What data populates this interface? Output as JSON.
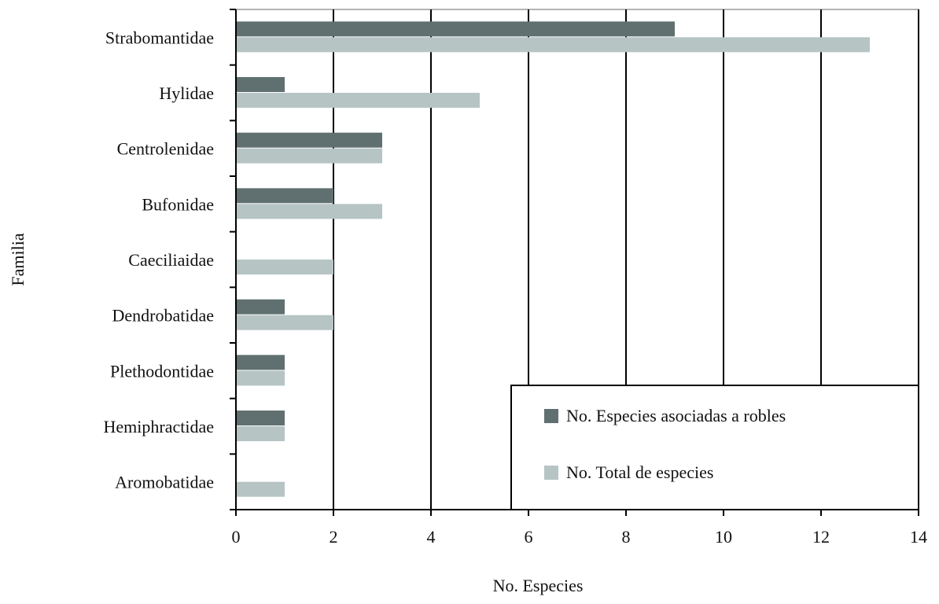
{
  "chart_data": {
    "type": "bar",
    "orientation": "horizontal",
    "categories": [
      "Strabomantidae",
      "Hylidae",
      "Centrolenidae",
      "Bufonidae",
      "Caeciliaidae",
      "Dendrobatidae",
      "Plethodontidae",
      "Hemiphractidae",
      "Aromobatidae"
    ],
    "series": [
      {
        "name": "No. Especies asociadas a robles",
        "color": "#607070",
        "values": [
          9,
          1,
          3,
          2,
          0,
          1,
          1,
          1,
          0
        ]
      },
      {
        "name": "No. Total de especies",
        "color": "#b6c4c4",
        "values": [
          13,
          5,
          3,
          3,
          2,
          2,
          1,
          1,
          1
        ]
      }
    ],
    "xlabel": "No. Especies",
    "ylabel": "Familia",
    "xlim": [
      0,
      14
    ],
    "xticks": [
      0,
      2,
      4,
      6,
      8,
      10,
      12,
      14
    ],
    "grid": "vertical",
    "legend_position": "bottom-right"
  }
}
